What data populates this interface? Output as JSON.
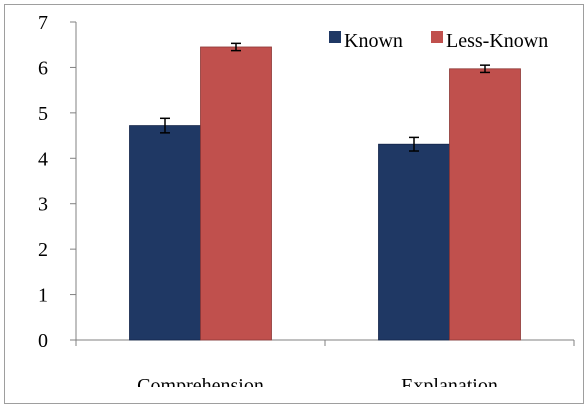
{
  "chart_data": {
    "type": "bar",
    "categories": [
      "Comprehension",
      "Explanation"
    ],
    "series": [
      {
        "name": "Known",
        "color": "#1f3864",
        "values": [
          4.72,
          4.31
        ],
        "errors": [
          0.16,
          0.15
        ]
      },
      {
        "name": "Less-Known",
        "color": "#c0504d",
        "values": [
          6.45,
          5.97
        ],
        "errors": [
          0.08,
          0.08
        ]
      }
    ],
    "title": "",
    "xlabel": "",
    "ylabel": "",
    "ylim": [
      0,
      7
    ],
    "yticks": [
      "0",
      "1",
      "2",
      "3",
      "4",
      "5",
      "6",
      "7"
    ],
    "grid": false,
    "legend_position": "top-right"
  }
}
